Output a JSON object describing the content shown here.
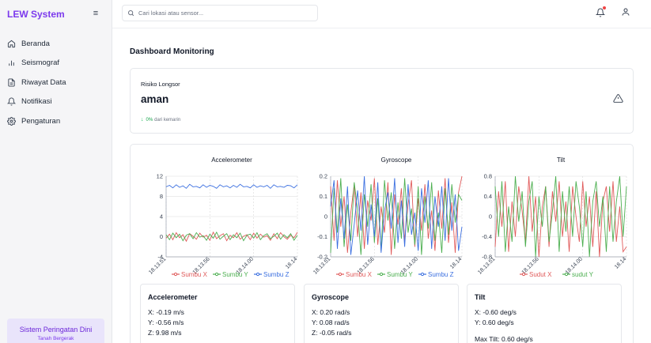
{
  "app": {
    "title": "LEW System"
  },
  "sidebar": {
    "items": [
      {
        "label": "Beranda",
        "icon": "home-icon"
      },
      {
        "label": "Seismograf",
        "icon": "bar-chart-icon"
      },
      {
        "label": "Riwayat Data",
        "icon": "document-icon"
      },
      {
        "label": "Notifikasi",
        "icon": "bell-icon"
      },
      {
        "label": "Pengaturan",
        "icon": "gear-icon"
      }
    ],
    "alert_card": {
      "title": "Sistem Peringatan Dini",
      "subtitle": "Tanah Bergerak"
    }
  },
  "topbar": {
    "search_placeholder": "Cari lokasi atau sensor...",
    "notification_dot_color": "#ef4444"
  },
  "page": {
    "title": "Dashboard Monitoring"
  },
  "risk": {
    "label": "Risiko Longsor",
    "value": "aman",
    "change_pct": "0%",
    "change_text": "dari kemarin"
  },
  "chart_data": [
    {
      "type": "line",
      "title": "Accelerometer",
      "ylim": [
        -4,
        12
      ],
      "yticks": [
        -4,
        0,
        4,
        8,
        12
      ],
      "x_tick_labels": [
        "18.13.51",
        "18.13.56",
        "18.14.00",
        "18.14"
      ],
      "grid": true,
      "legend_position": "bottom",
      "series": [
        {
          "name": "Sumbu X",
          "color": "#e05a5a",
          "values": [
            -0.3,
            0.5,
            -0.6,
            0.8,
            -0.2,
            0.4,
            -0.9,
            0.6,
            0.1,
            -0.5,
            0.7,
            -0.1,
            0.3,
            -0.7,
            0.9,
            -0.4,
            0.2,
            0.6,
            -0.8,
            0.3,
            -0.2,
            0.8,
            -0.5,
            0.1,
            0.4,
            -0.6,
            0.7,
            -0.3,
            0.5,
            -0.1,
            0.2,
            -0.7,
            0.6,
            -0.4,
            0.8,
            0.0,
            -0.5,
            0.3,
            -0.2,
            0.9
          ]
        },
        {
          "name": "Sumbu Y",
          "color": "#4caf50",
          "values": [
            0.4,
            -0.6,
            0.7,
            -0.2,
            0.5,
            -0.8,
            0.3,
            0.6,
            -0.4,
            0.8,
            -0.1,
            0.2,
            -0.7,
            0.5,
            -0.3,
            0.9,
            -0.5,
            0.1,
            0.6,
            -0.6,
            0.4,
            -0.2,
            0.7,
            -0.8,
            0.3,
            0.5,
            -0.3,
            0.8,
            -0.6,
            0.2,
            0.6,
            -0.4,
            0.1,
            0.7,
            -0.5,
            0.4,
            -0.2,
            0.6,
            -0.7,
            0.3
          ]
        },
        {
          "name": "Sumbu Z",
          "color": "#3b6fe0",
          "values": [
            9.9,
            10.2,
            9.7,
            10.3,
            9.8,
            10.1,
            9.6,
            10.4,
            9.9,
            10.0,
            9.7,
            10.3,
            9.8,
            10.2,
            10.0,
            9.6,
            10.3,
            9.9,
            10.1,
            9.7,
            10.2,
            9.8,
            10.4,
            9.9,
            10.0,
            9.7,
            10.3,
            9.8,
            10.1,
            9.9,
            10.2,
            9.6,
            10.3,
            9.9,
            10.0,
            9.8,
            10.2,
            10.1,
            9.7,
            10.3
          ]
        }
      ]
    },
    {
      "type": "line",
      "title": "Gyroscope",
      "ylim": [
        -0.2,
        0.2
      ],
      "yticks": [
        0.2,
        0.1,
        0,
        -0.1,
        -0.2
      ],
      "x_tick_labels": [
        "18.13.51",
        "18.13.56",
        "18.14.00",
        "18.14"
      ],
      "grid": true,
      "legend_position": "bottom",
      "series": [
        {
          "name": "Sumbu X",
          "color": "#e05a5a",
          "values": [
            0.15,
            -0.12,
            0.18,
            -0.05,
            0.1,
            -0.18,
            0.02,
            0.16,
            -0.1,
            0.12,
            -0.16,
            0.08,
            -0.02,
            0.19,
            -0.14,
            0.05,
            -0.08,
            0.17,
            -0.19,
            0.11,
            -0.04,
            0.14,
            -0.12,
            0.06,
            0.18,
            -0.15,
            0.09,
            -0.07,
            0.16,
            -0.11,
            0.03,
            -0.17,
            0.13,
            -0.06,
            0.19,
            -0.13,
            0.07,
            -0.18,
            0.12,
            0.2
          ]
        },
        {
          "name": "Sumbu Y",
          "color": "#4caf50",
          "values": [
            -0.18,
            0.14,
            -0.08,
            0.19,
            -0.15,
            0.06,
            -0.12,
            0.17,
            0.03,
            -0.19,
            0.11,
            -0.05,
            0.16,
            -0.13,
            0.09,
            -0.17,
            0.18,
            -0.02,
            0.12,
            -0.16,
            0.07,
            -0.11,
            0.19,
            -0.08,
            0.04,
            -0.14,
            0.15,
            -0.19,
            0.1,
            -0.06,
            0.17,
            -0.12,
            0.02,
            -0.18,
            0.14,
            -0.09,
            0.16,
            -0.03,
            0.11,
            0.08
          ]
        },
        {
          "name": "Sumbu Z",
          "color": "#3b6fe0",
          "values": [
            0.05,
            0.18,
            -0.16,
            0.09,
            -0.11,
            0.15,
            -0.19,
            -0.04,
            0.13,
            -0.07,
            0.2,
            -0.14,
            0.06,
            -0.1,
            0.17,
            -0.18,
            0.03,
            0.12,
            -0.06,
            0.19,
            -0.13,
            0.08,
            -0.15,
            0.16,
            -0.09,
            0.02,
            -0.17,
            0.14,
            -0.03,
            0.18,
            -0.16,
            0.1,
            -0.05,
            0.15,
            -0.12,
            0.19,
            -0.07,
            0.11,
            -0.17,
            -0.05
          ]
        }
      ]
    },
    {
      "type": "line",
      "title": "Tilt",
      "ylim": [
        -0.8,
        0.8
      ],
      "yticks": [
        0.8,
        0.4,
        0,
        -0.4,
        -0.8
      ],
      "x_tick_labels": [
        "18.13.51",
        "18.13.56",
        "18.14.00",
        "18.14"
      ],
      "grid": true,
      "legend_position": "bottom",
      "series": [
        {
          "name": "Sudut X",
          "color": "#e05a5a",
          "values": [
            -0.6,
            0.5,
            -0.2,
            0.7,
            -0.7,
            0.3,
            -0.4,
            0.6,
            0.1,
            -0.5,
            0.8,
            -0.3,
            0.4,
            -0.8,
            0.2,
            0.6,
            -0.6,
            0.5,
            -0.1,
            0.7,
            -0.4,
            0.3,
            -0.7,
            0.6,
            0.0,
            -0.5,
            0.7,
            -0.2,
            0.4,
            -0.6,
            0.5,
            -0.8,
            0.3,
            0.6,
            -0.3,
            0.7,
            -0.5,
            0.2,
            -0.7,
            -0.6
          ]
        },
        {
          "name": "sudut Y",
          "color": "#4caf50",
          "values": [
            0.6,
            -0.4,
            0.7,
            -0.7,
            0.2,
            -0.5,
            0.8,
            -0.1,
            0.5,
            -0.6,
            0.3,
            0.7,
            -0.8,
            0.4,
            -0.2,
            0.6,
            -0.5,
            0.1,
            0.8,
            -0.7,
            0.5,
            -0.3,
            0.6,
            -0.4,
            0.7,
            0.2,
            -0.6,
            0.5,
            -0.8,
            0.3,
            0.7,
            -0.2,
            0.4,
            -0.7,
            0.6,
            -0.5,
            0.3,
            0.8,
            -0.4,
            0.6
          ]
        }
      ]
    }
  ],
  "stats": [
    {
      "title": "Accelerometer",
      "lines": [
        "X: -0.19 m/s",
        "Y: -0.56 m/s",
        "Z: 9.98 m/s"
      ]
    },
    {
      "title": "Gyroscope",
      "lines": [
        "X: 0.20 rad/s",
        "Y: 0.08 rad/s",
        "Z: -0.05 rad/s"
      ]
    },
    {
      "title": "Tilt",
      "lines": [
        "X: -0.60 deg/s",
        "Y: 0.60 deg/s",
        "",
        "Max Tilt: 0.60 deg/s"
      ]
    }
  ]
}
